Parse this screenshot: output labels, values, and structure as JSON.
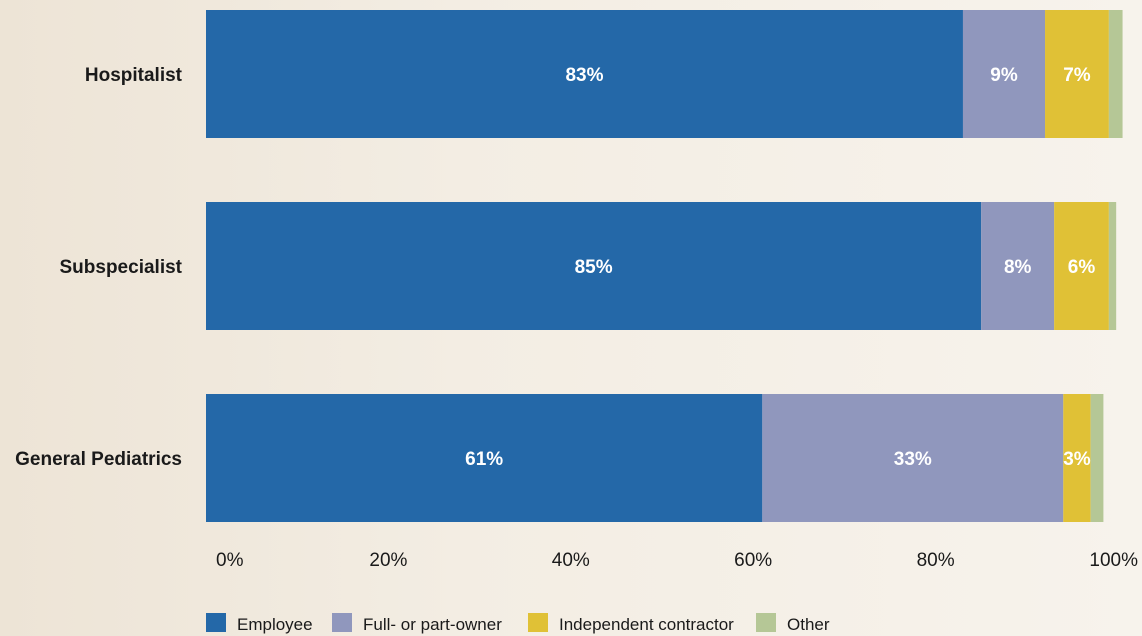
{
  "chart_data": {
    "type": "bar",
    "orientation": "horizontal",
    "stacked": true,
    "categories": [
      "Hospitalist",
      "Subspecialist",
      "General Pediatrics"
    ],
    "series": [
      {
        "name": "Employee",
        "color": "#2468a8",
        "values": [
          83,
          85,
          61
        ],
        "labels": [
          "83%",
          "85%",
          "61%"
        ]
      },
      {
        "name": "Full- or part-owner",
        "color": "#9097bd",
        "values": [
          9,
          8,
          33
        ],
        "labels": [
          "9%",
          "8%",
          "33%"
        ]
      },
      {
        "name": "Independent contractor",
        "color": "#e0c136",
        "values": [
          7,
          6,
          3
        ],
        "labels": [
          "7%",
          "6%",
          "3%"
        ]
      },
      {
        "name": "Other",
        "color": "#b5c796",
        "values": [
          1.5,
          0.8,
          1.4
        ],
        "labels": [
          "",
          "",
          ""
        ]
      }
    ],
    "xticks": [
      "0%",
      "20%",
      "40%",
      "60%",
      "80%",
      "100%"
    ],
    "xlim": [
      0,
      100
    ],
    "grid": false,
    "legend": "bottom-left"
  }
}
